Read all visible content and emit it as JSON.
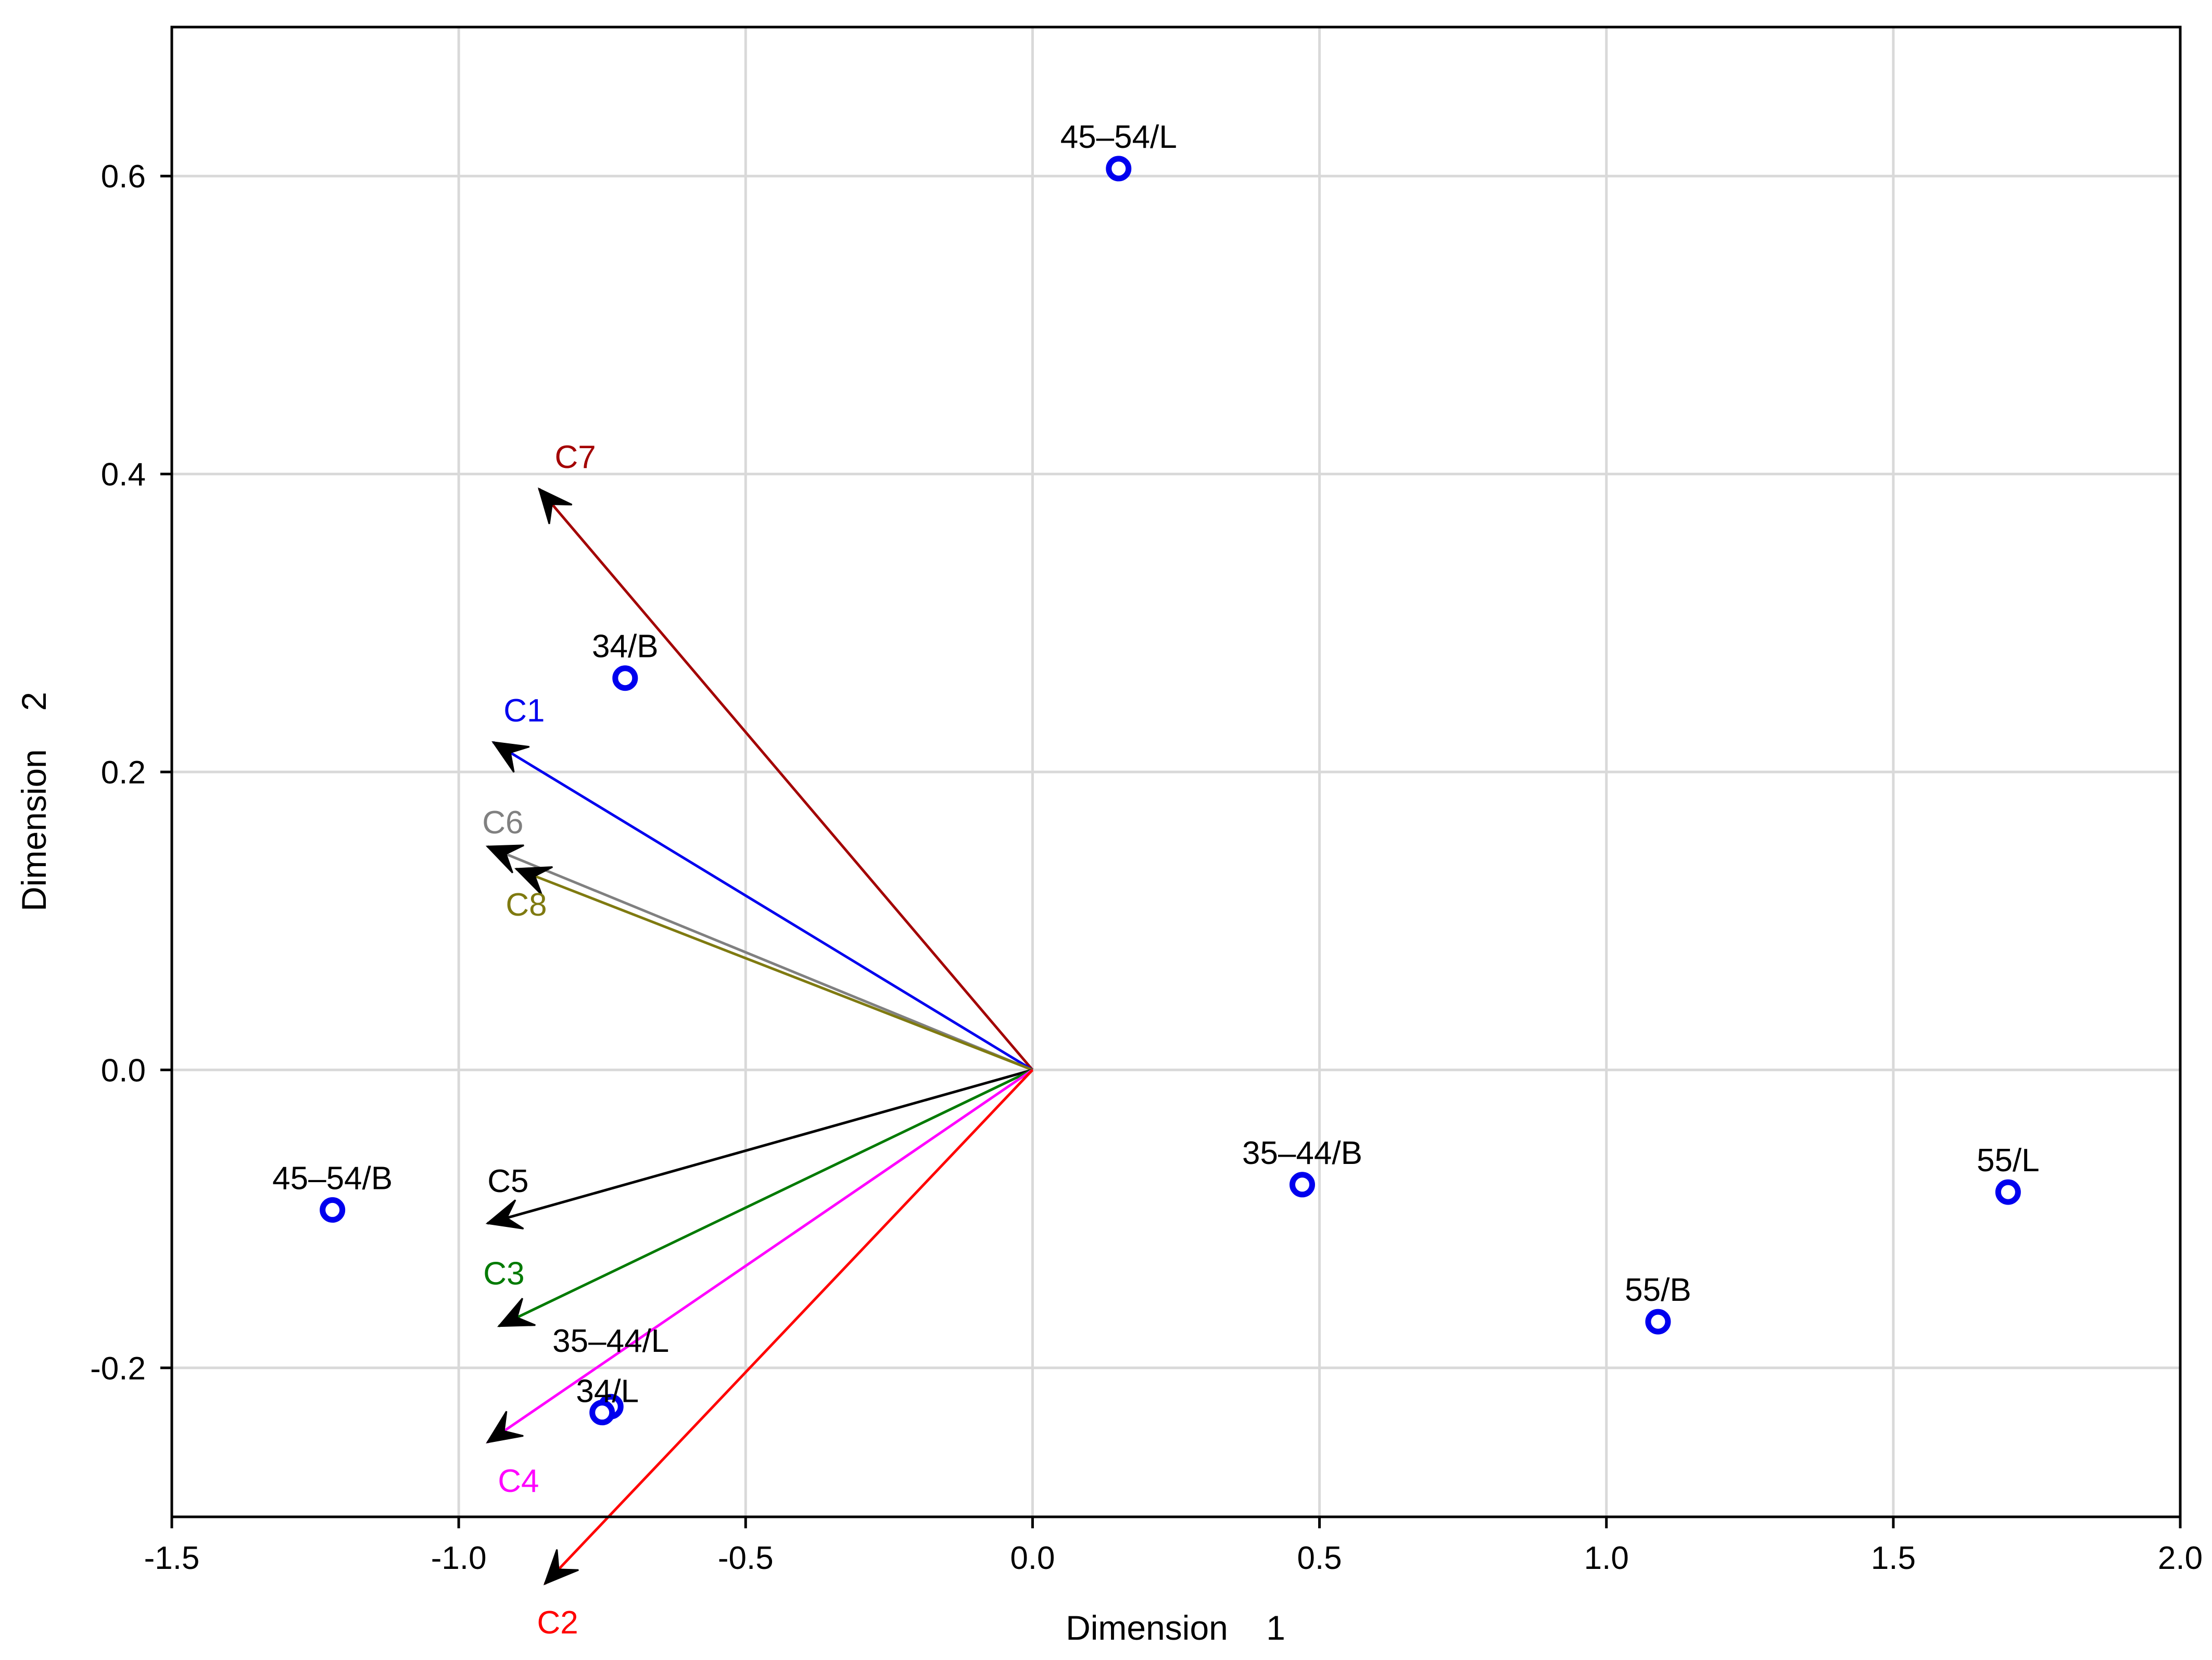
{
  "chart_data": {
    "type": "scatter",
    "title": "",
    "xlabel": "Dimension    1",
    "ylabel": "Dimension    2",
    "xlim": [
      -1.5,
      2.0
    ],
    "ylim": [
      -0.3,
      0.7
    ],
    "x_ticks": [
      -1.5,
      -1.0,
      -0.5,
      0.0,
      0.5,
      1.0,
      1.5,
      2.0
    ],
    "x_tick_labels": [
      "-1.5",
      "-1.0",
      "-0.5",
      "0.0",
      "0.5",
      "1.0",
      "1.5",
      "2.0"
    ],
    "y_ticks": [
      -0.2,
      0.0,
      0.2,
      0.4,
      0.6
    ],
    "y_tick_labels": [
      "-0.2",
      "0.0",
      "0.2",
      "0.4",
      "0.6"
    ],
    "grid": true,
    "point_color": "#0000ee",
    "points": [
      {
        "label": "45–54/L",
        "x": 0.15,
        "y": 0.605
      },
      {
        "label": "34/B",
        "x": -0.71,
        "y": 0.263
      },
      {
        "label": "45–54/B",
        "x": -1.22,
        "y": -0.094
      },
      {
        "label": "35–44/B",
        "x": 0.47,
        "y": -0.077
      },
      {
        "label": "55/L",
        "x": 1.7,
        "y": -0.082
      },
      {
        "label": "55/B",
        "x": 1.09,
        "y": -0.169
      },
      {
        "label": "35–44/L",
        "x": -0.735,
        "y": -0.226
      },
      {
        "label": "34/L",
        "x": -0.75,
        "y": -0.23
      }
    ],
    "vectors": [
      {
        "name": "C7",
        "x": -0.86,
        "y": 0.39,
        "color": "#a30000"
      },
      {
        "name": "C1",
        "x": -0.94,
        "y": 0.22,
        "color": "#0000ee"
      },
      {
        "name": "C6",
        "x": -0.95,
        "y": 0.15,
        "color": "#808080"
      },
      {
        "name": "C8",
        "x": -0.9,
        "y": 0.135,
        "color": "#7f7a10"
      },
      {
        "name": "C5",
        "x": -0.95,
        "y": -0.103,
        "color": "#000000"
      },
      {
        "name": "C3",
        "x": -0.93,
        "y": -0.172,
        "color": "#007a00"
      },
      {
        "name": "C4",
        "x": -0.95,
        "y": -0.25,
        "color": "#ff00ff"
      },
      {
        "name": "C2",
        "x": -0.85,
        "y": -0.345,
        "color": "#ff0000"
      }
    ]
  }
}
